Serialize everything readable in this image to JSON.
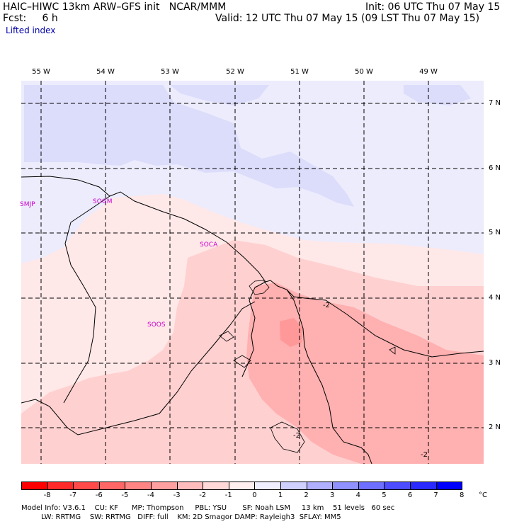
{
  "header": {
    "title": "HAIC–HIWC 13km ARW–GFS init   NCAR/MMM",
    "fcst": "Fcst:     6 h",
    "init": "Init: 06 UTC Thu 07 May 15",
    "valid": "Valid: 12 UTC Thu 07 May 15 (09 LST Thu 07 May 15)",
    "field": "Lifted index"
  },
  "longitudes": [
    "55 W",
    "54 W",
    "53 W",
    "52 W",
    "51 W",
    "50 W",
    "49 W"
  ],
  "latitudes": [
    "7 N",
    "6 N",
    "5 N",
    "4 N",
    "3 N",
    "2 N"
  ],
  "stations": [
    "SMJP",
    "SOGM",
    "SOCA",
    "SOOS"
  ],
  "contour_labels": [
    "-2",
    "-2",
    "-2"
  ],
  "colorbar": {
    "unit": "°C",
    "labels": [
      "-8",
      "-7",
      "-6",
      "-5",
      "-4",
      "-3",
      "-2",
      "-1",
      "0",
      "1",
      "2",
      "3",
      "4",
      "5",
      "6",
      "7",
      "8"
    ],
    "colors": [
      "#ff0000",
      "#ff2a2a",
      "#ff4a4a",
      "#ff6666",
      "#ff8484",
      "#ffa0a0",
      "#ffbcbc",
      "#ffd8d8",
      "#ffeeee",
      "#eeeeff",
      "#d0d0ff",
      "#b0b0ff",
      "#9090ff",
      "#6f6fff",
      "#4d4dff",
      "#2a2aff",
      "#0000ff"
    ]
  },
  "footer": {
    "line1": "Model Info: V3.6.1    CU: KF      MP: Thompson     PBL: YSU       SF: Noah LSM     13 km    51 levels   60 sec",
    "line2": "LW: RRTMG    SW: RRTMG   DIFF: full    KM: 2D Smagor DAMP: Rayleigh3  SFLAY: MM5"
  }
}
